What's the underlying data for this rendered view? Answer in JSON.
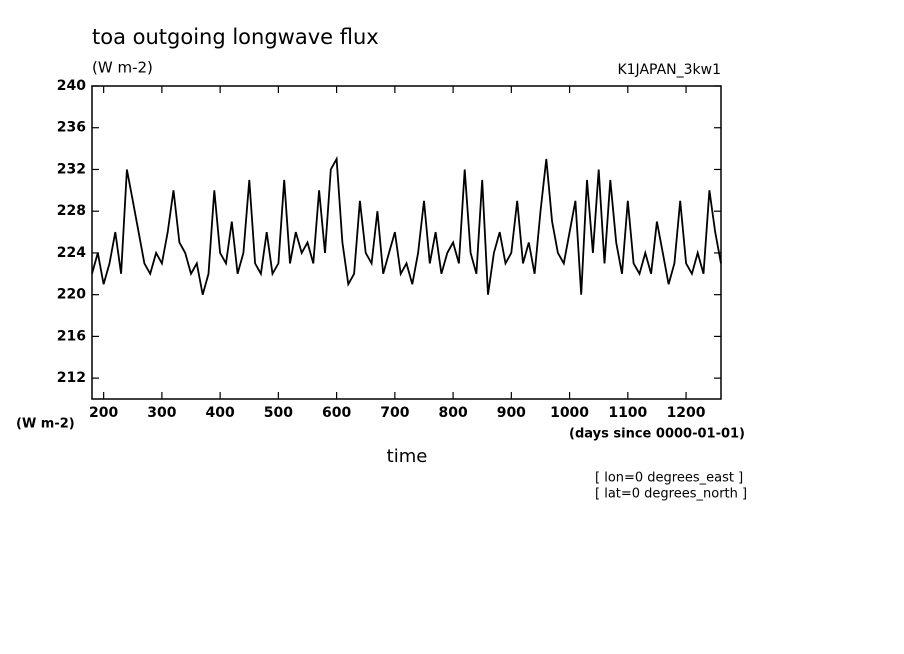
{
  "chart_data": {
    "type": "line",
    "title": "toa outgoing longwave flux",
    "subtitle": "(W m-2)",
    "dataset": "K1JAPAN_3kw1",
    "ylabel": "(W m-2)",
    "xlabel": "time",
    "xunits": "(days since 0000-01-01)",
    "notes": [
      "[ lon=0 degrees_east ]",
      "[ lat=0 degrees_north ]"
    ],
    "xlim": [
      180,
      1260
    ],
    "ylim": [
      210,
      240
    ],
    "xticks": [
      200,
      300,
      400,
      500,
      600,
      700,
      800,
      900,
      1000,
      1100,
      1200
    ],
    "yticks": [
      212,
      216,
      220,
      224,
      228,
      232,
      236,
      240
    ],
    "x": [
      180,
      190,
      200,
      210,
      220,
      230,
      240,
      250,
      260,
      270,
      280,
      290,
      300,
      310,
      320,
      330,
      340,
      350,
      360,
      370,
      380,
      390,
      400,
      410,
      420,
      430,
      440,
      450,
      460,
      470,
      480,
      490,
      500,
      510,
      520,
      530,
      540,
      550,
      560,
      570,
      580,
      590,
      600,
      610,
      620,
      630,
      640,
      650,
      660,
      670,
      680,
      690,
      700,
      710,
      720,
      730,
      740,
      750,
      760,
      770,
      780,
      790,
      800,
      810,
      820,
      830,
      840,
      850,
      860,
      870,
      880,
      890,
      900,
      910,
      920,
      930,
      940,
      950,
      960,
      970,
      980,
      990,
      1000,
      1010,
      1020,
      1030,
      1040,
      1050,
      1060,
      1070,
      1080,
      1090,
      1100,
      1110,
      1120,
      1130,
      1140,
      1150,
      1160,
      1170,
      1180,
      1190,
      1200,
      1210,
      1220,
      1230,
      1240,
      1250,
      1260
    ],
    "series": [
      {
        "color": "#000000",
        "values": [
          222,
          224,
          221,
          223,
          226,
          222,
          232,
          229,
          226,
          223,
          222,
          224,
          223,
          226,
          230,
          225,
          224,
          222,
          223,
          220,
          222,
          230,
          224,
          223,
          227,
          222,
          224,
          231,
          223,
          222,
          226,
          222,
          223,
          231,
          223,
          226,
          224,
          225,
          223,
          230,
          224,
          232,
          233,
          225,
          221,
          222,
          229,
          224,
          223,
          228,
          222,
          224,
          226,
          222,
          223,
          221,
          224,
          229,
          223,
          226,
          222,
          224,
          225,
          223,
          232,
          224,
          222,
          231,
          220,
          224,
          226,
          223,
          224,
          229,
          223,
          225,
          222,
          228,
          233,
          227,
          224,
          223,
          226,
          229,
          220,
          231,
          224,
          232,
          223,
          231,
          225,
          222,
          229,
          223,
          222,
          224,
          222,
          227,
          224,
          221,
          223,
          229,
          223,
          222,
          224,
          222,
          230,
          226,
          223
        ]
      }
    ]
  }
}
